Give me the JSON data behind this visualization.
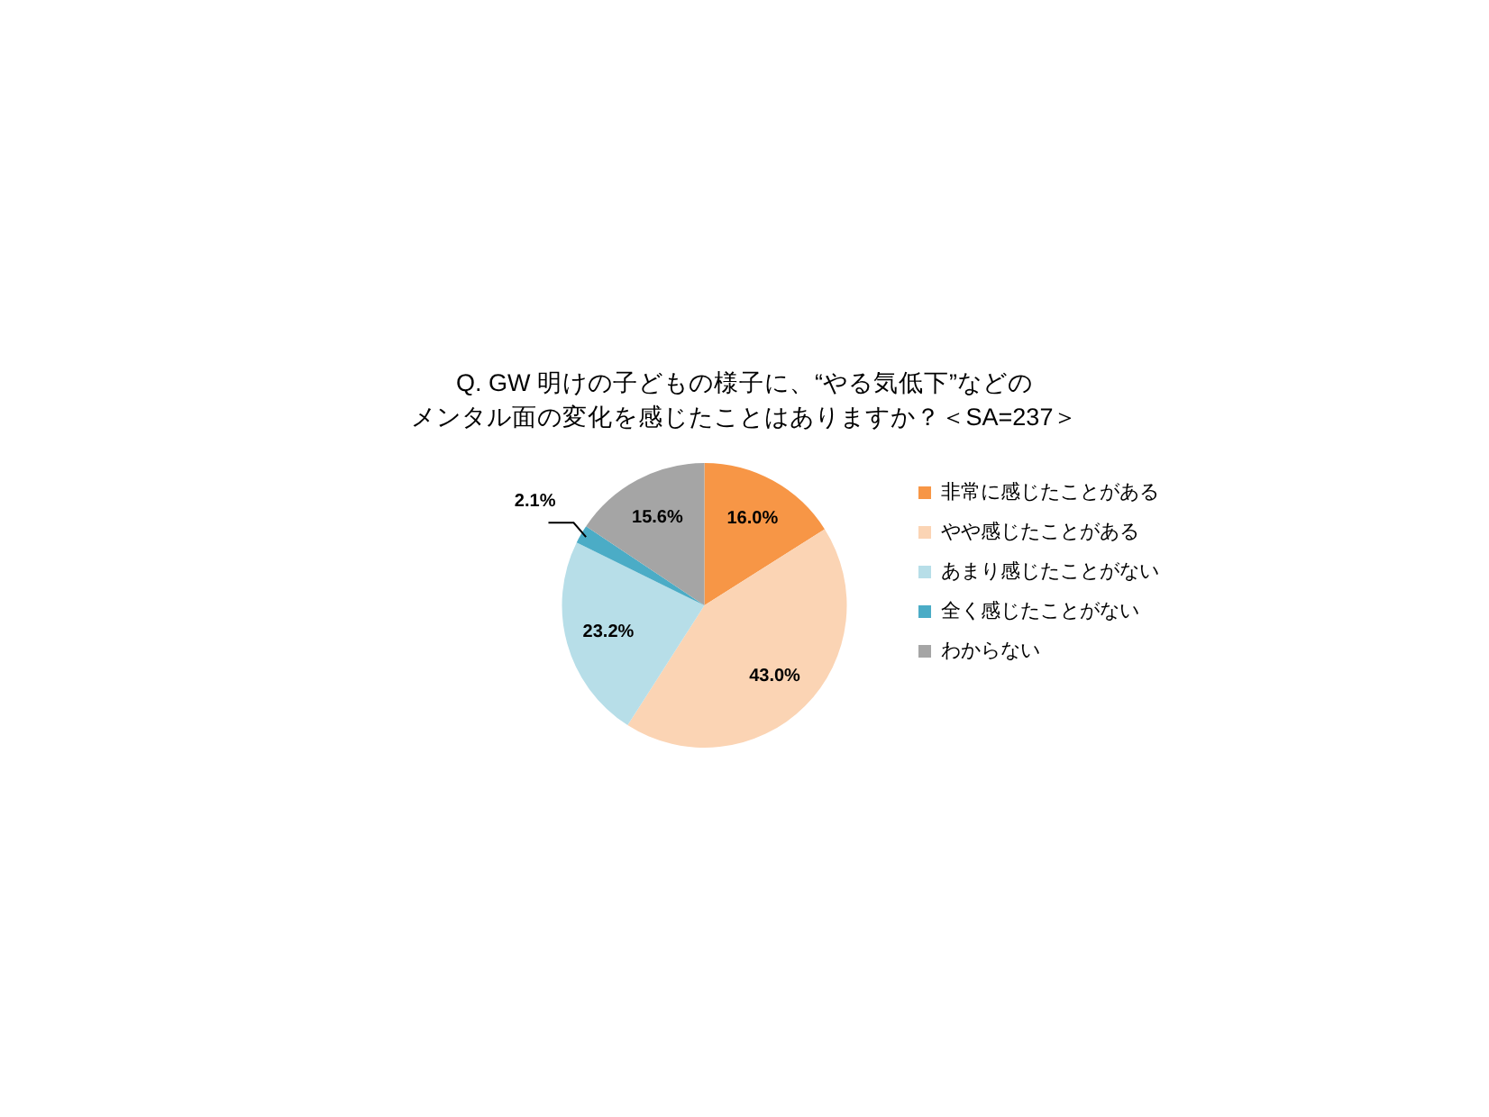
{
  "chart_data": {
    "type": "pie",
    "title": "Q. GW 明けの子どもの様子に、“やる気低下”などのメンタル面の変化を感じたことはありますか？＜SA=237＞",
    "categories": [
      "非常に感じたことがある",
      "やや感じたことがある",
      "あまり感じたことがない",
      "全く感じたことがない",
      "わからない"
    ],
    "values": [
      16.0,
      43.0,
      23.2,
      2.1,
      15.6
    ],
    "colors": [
      "#f79646",
      "#fbd4b4",
      "#b7dee8",
      "#4bacc6",
      "#a5a5a5"
    ],
    "value_labels": [
      "16.0%",
      "43.0%",
      "23.2%",
      "2.1%",
      "15.6%"
    ],
    "legend": "right"
  }
}
